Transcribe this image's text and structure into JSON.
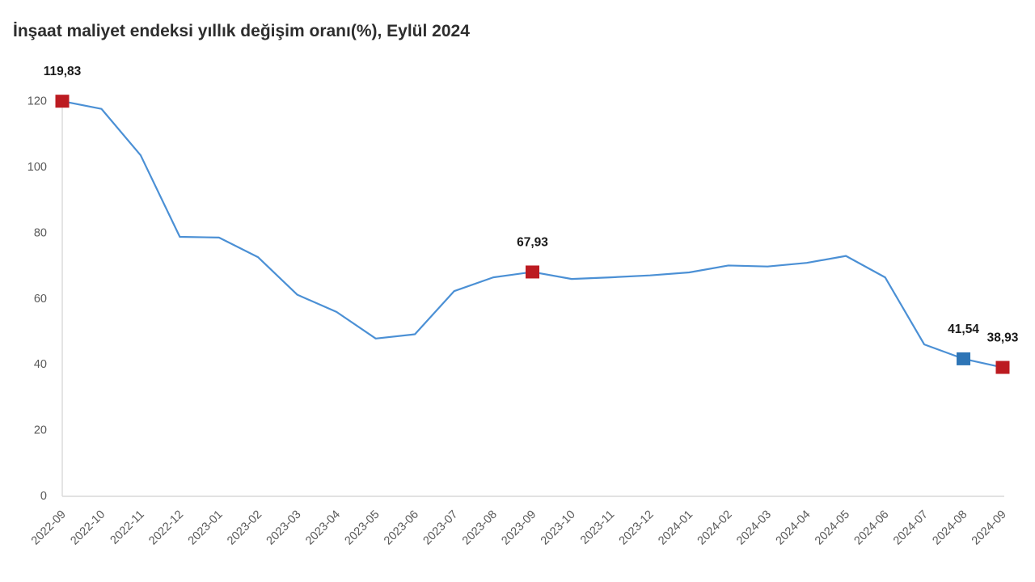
{
  "header": {
    "title": "İnşaat maliyet endeksi yıllık değişim oranı(%), Eylül 2024"
  },
  "chart_data": {
    "type": "line",
    "title": "İnşaat maliyet endeksi yıllık değişim oranı(%), Eylül 2024",
    "xlabel": "",
    "ylabel": "",
    "ylim": [
      0,
      120
    ],
    "yticks": [
      0,
      20,
      40,
      60,
      80,
      100,
      120
    ],
    "grid": false,
    "legend_position": "none",
    "categories": [
      "2022-09",
      "2022-10",
      "2022-11",
      "2022-12",
      "2023-01",
      "2023-02",
      "2023-03",
      "2023-04",
      "2023-05",
      "2023-06",
      "2023-07",
      "2023-08",
      "2023-09",
      "2023-10",
      "2023-11",
      "2023-12",
      "2024-01",
      "2024-02",
      "2024-03",
      "2024-04",
      "2024-05",
      "2024-06",
      "2024-07",
      "2024-08",
      "2024-09"
    ],
    "series": [
      {
        "name": "Yıllık değişim oranı (%)",
        "values": [
          119.83,
          117.5,
          103.4,
          78.6,
          78.4,
          72.4,
          61.0,
          55.8,
          47.7,
          49.0,
          62.1,
          66.3,
          67.93,
          65.8,
          66.3,
          66.9,
          67.8,
          69.9,
          69.6,
          70.7,
          72.8,
          66.3,
          45.9,
          41.54,
          38.93
        ]
      }
    ],
    "highlight_markers": [
      {
        "category": "2022-09",
        "index": 0,
        "label": "119,83",
        "color": "#bc1b21"
      },
      {
        "category": "2023-09",
        "index": 12,
        "label": "67,93",
        "color": "#bc1b21"
      },
      {
        "category": "2024-08",
        "index": 23,
        "label": "41,54",
        "color": "#2e75b6"
      },
      {
        "category": "2024-09",
        "index": 24,
        "label": "38,93",
        "color": "#bc1b21"
      }
    ],
    "colors": {
      "line": "#4b90d5",
      "marker_red": "#bc1b21",
      "marker_blue": "#2e75b6",
      "axis": "#d9d9d9",
      "tick_label": "#595959",
      "annotation": "#1a1a1a",
      "title": "#2d2d2d",
      "background": "#ffffff"
    }
  }
}
